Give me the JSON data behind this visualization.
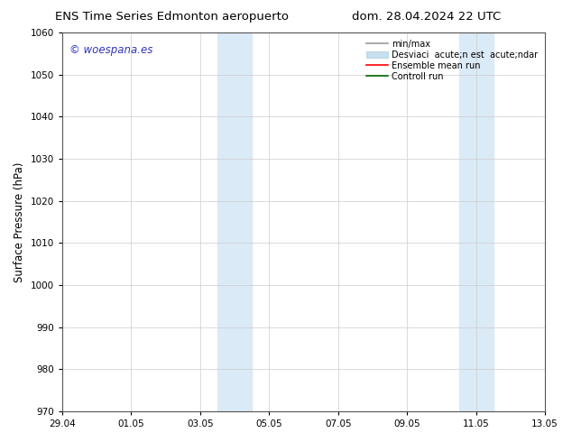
{
  "title_left": "ENS Time Series Edmonton aeropuerto",
  "title_right": "dom. 28.04.2024 22 UTC",
  "ylabel": "Surface Pressure (hPa)",
  "ylim": [
    970,
    1060
  ],
  "yticks": [
    970,
    980,
    990,
    1000,
    1010,
    1020,
    1030,
    1040,
    1050,
    1060
  ],
  "xtick_labels": [
    "29.04",
    "01.05",
    "03.05",
    "05.05",
    "07.05",
    "09.05",
    "11.05",
    "13.05"
  ],
  "xtick_positions": [
    0,
    2,
    4,
    6,
    8,
    10,
    12,
    14
  ],
  "background_color": "#ffffff",
  "shaded_bands": [
    {
      "x_start": 4.5,
      "x_end": 5.5
    },
    {
      "x_start": 11.5,
      "x_end": 12.5
    }
  ],
  "shaded_color": "#daeaf7",
  "watermark_text": "© woespana.es",
  "watermark_color": "#3333bb",
  "legend_label_minmax": "min/max",
  "legend_label_std": "Desviaci  acute;n est  acute;ndar",
  "legend_label_ensemble": "Ensemble mean run",
  "legend_label_control": "Controll run",
  "legend_color_minmax": "#999999",
  "legend_color_std": "#c8dff0",
  "legend_color_ensemble": "#ff0000",
  "legend_color_control": "#006600",
  "title_fontsize": 9.5,
  "tick_fontsize": 7.5,
  "ylabel_fontsize": 8.5,
  "legend_fontsize": 7.0,
  "watermark_fontsize": 8.5
}
